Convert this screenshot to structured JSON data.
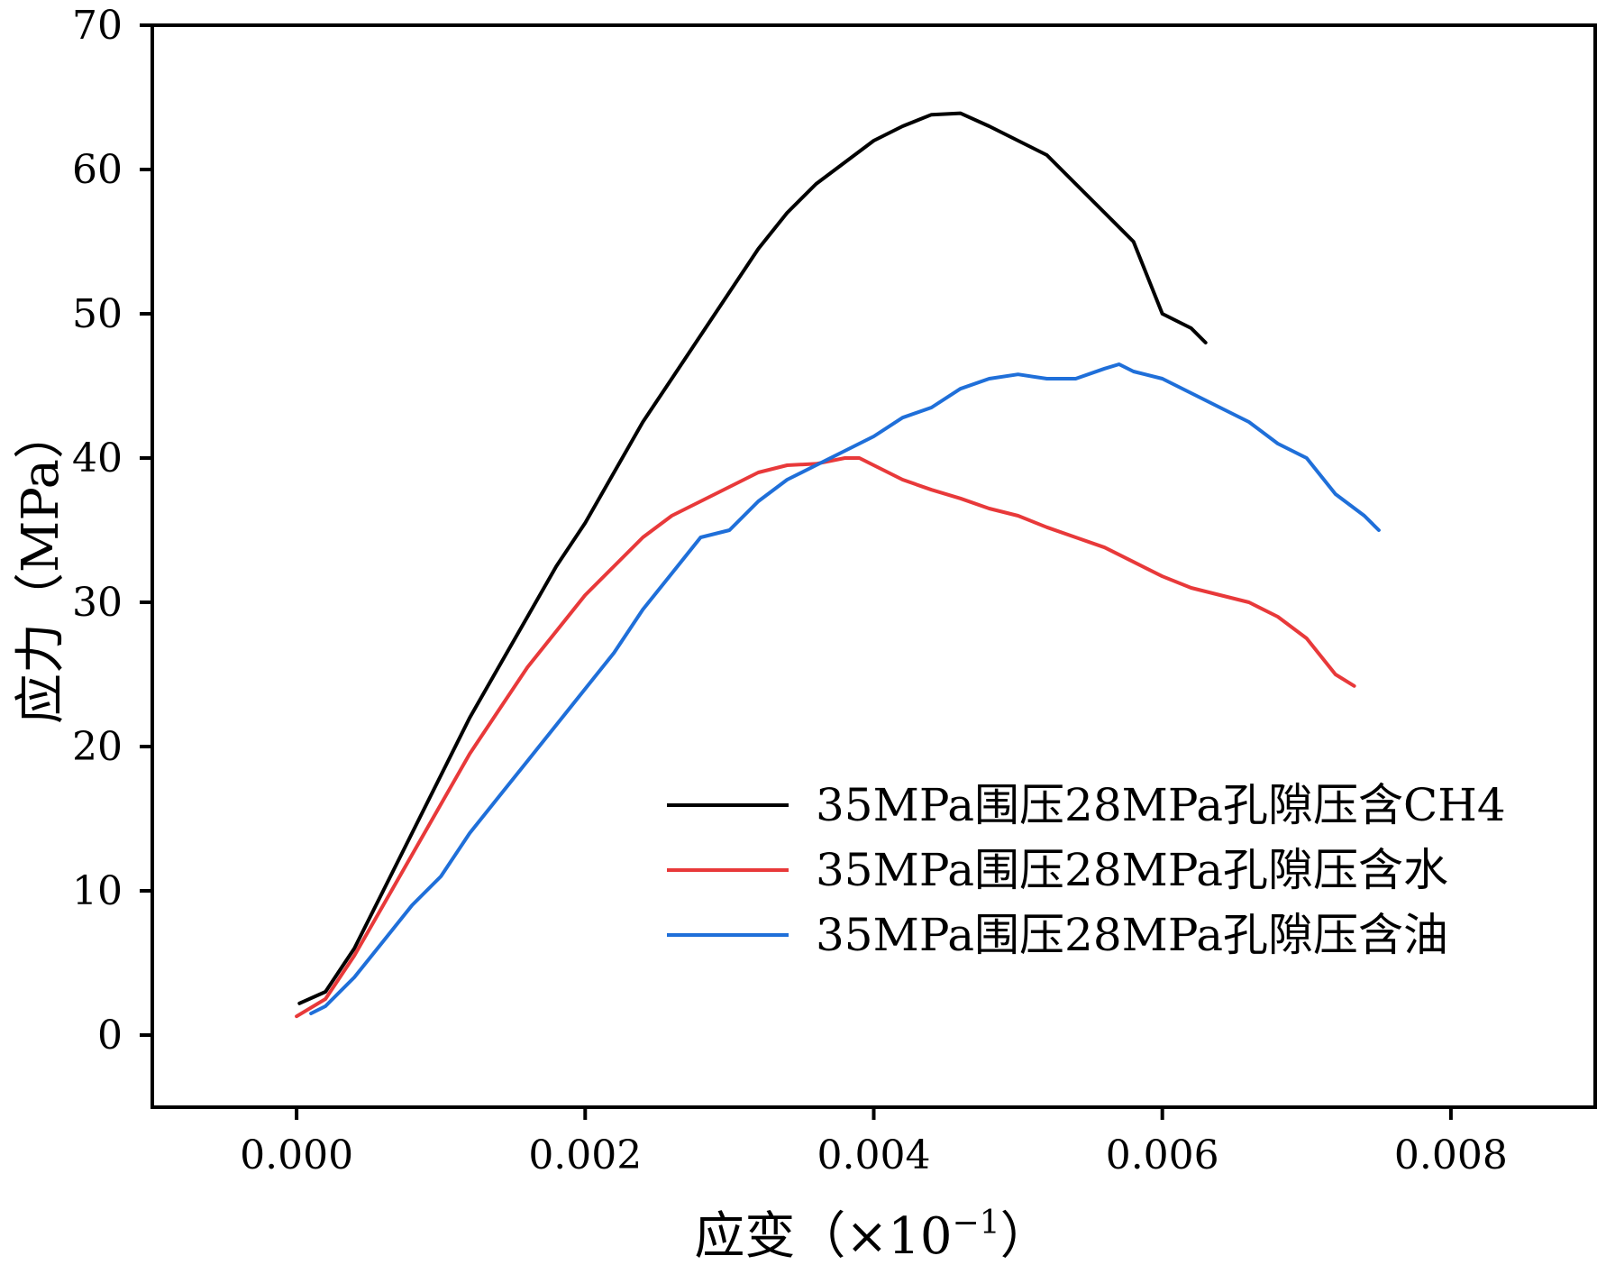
{
  "chart_data": {
    "type": "line",
    "xlabel": "应变（×10",
    "xlabel_exponent": "−1",
    "xlabel_close": "）",
    "ylabel": "应力（MPa）",
    "xlim": [
      -0.001,
      0.009
    ],
    "ylim": [
      -5,
      70
    ],
    "x_ticks": [
      0.0,
      0.002,
      0.004,
      0.006,
      0.008
    ],
    "x_tick_labels": [
      "0.000",
      "0.002",
      "0.004",
      "0.006",
      "0.008"
    ],
    "y_ticks": [
      0,
      10,
      20,
      30,
      40,
      50,
      60,
      70
    ],
    "y_tick_labels": [
      "0",
      "10",
      "20",
      "30",
      "40",
      "50",
      "60",
      "70"
    ],
    "grid": false,
    "legend_position": "lower-right",
    "series": [
      {
        "name": "35MPa围压28MPa孔隙压含CH4",
        "color": "#000000",
        "x": [
          2e-05,
          0.0002,
          0.0004,
          0.0006,
          0.0008,
          0.001,
          0.0012,
          0.0014,
          0.0016,
          0.0018,
          0.002,
          0.0022,
          0.0024,
          0.0026,
          0.0028,
          0.003,
          0.0032,
          0.0034,
          0.0036,
          0.0038,
          0.004,
          0.0042,
          0.0044,
          0.0046,
          0.0048,
          0.005,
          0.0052,
          0.0054,
          0.0056,
          0.0058,
          0.006,
          0.0062,
          0.0063
        ],
        "y": [
          2.2,
          3.0,
          6.0,
          10.0,
          14.0,
          18.0,
          22.0,
          25.5,
          29.0,
          32.5,
          35.5,
          39.0,
          42.5,
          45.5,
          48.5,
          51.5,
          54.5,
          57.0,
          59.0,
          60.5,
          62.0,
          63.0,
          63.8,
          63.9,
          63.0,
          62.0,
          61.0,
          59.0,
          57.0,
          55.0,
          50.0,
          49.0,
          48.0
        ]
      },
      {
        "name": "35MPa围压28MPa孔隙压含水",
        "color": "#e8393a",
        "x": [
          0.0,
          0.0002,
          0.0004,
          0.0006,
          0.0008,
          0.001,
          0.0012,
          0.0014,
          0.0016,
          0.0018,
          0.002,
          0.0022,
          0.0024,
          0.0026,
          0.0028,
          0.003,
          0.0032,
          0.0034,
          0.0036,
          0.0038,
          0.0039,
          0.004,
          0.0042,
          0.0044,
          0.0046,
          0.0048,
          0.005,
          0.0052,
          0.0054,
          0.0056,
          0.0058,
          0.006,
          0.0062,
          0.0064,
          0.0066,
          0.0068,
          0.007,
          0.0072,
          0.00733
        ],
        "y": [
          1.3,
          2.5,
          5.5,
          9.0,
          12.5,
          16.0,
          19.5,
          22.5,
          25.5,
          28.0,
          30.5,
          32.5,
          34.5,
          36.0,
          37.0,
          38.0,
          39.0,
          39.5,
          39.6,
          40.0,
          40.0,
          39.5,
          38.5,
          37.8,
          37.2,
          36.5,
          36.0,
          35.2,
          34.5,
          33.8,
          32.8,
          31.8,
          31.0,
          30.5,
          30.0,
          29.0,
          27.5,
          25.0,
          24.2
        ]
      },
      {
        "name": "35MPa围压28MPa孔隙压含油",
        "color": "#1f6fd9",
        "x": [
          0.0001,
          0.0002,
          0.0004,
          0.0006,
          0.0008,
          0.001,
          0.0012,
          0.0014,
          0.0016,
          0.0018,
          0.002,
          0.0022,
          0.0024,
          0.0026,
          0.0028,
          0.003,
          0.0032,
          0.0034,
          0.0036,
          0.0038,
          0.004,
          0.0042,
          0.0044,
          0.0046,
          0.0048,
          0.005,
          0.0052,
          0.0054,
          0.0056,
          0.0057,
          0.0058,
          0.006,
          0.0062,
          0.0064,
          0.0066,
          0.0068,
          0.007,
          0.0072,
          0.0074,
          0.0075
        ],
        "y": [
          1.5,
          2.0,
          4.0,
          6.5,
          9.0,
          11.0,
          14.0,
          16.5,
          19.0,
          21.5,
          24.0,
          26.5,
          29.5,
          32.0,
          34.5,
          35.0,
          37.0,
          38.5,
          39.5,
          40.5,
          41.5,
          42.8,
          43.5,
          44.8,
          45.5,
          45.8,
          45.5,
          45.5,
          46.2,
          46.5,
          46.0,
          45.5,
          44.5,
          43.5,
          42.5,
          41.0,
          40.0,
          37.5,
          36.0,
          35.0
        ]
      }
    ]
  }
}
